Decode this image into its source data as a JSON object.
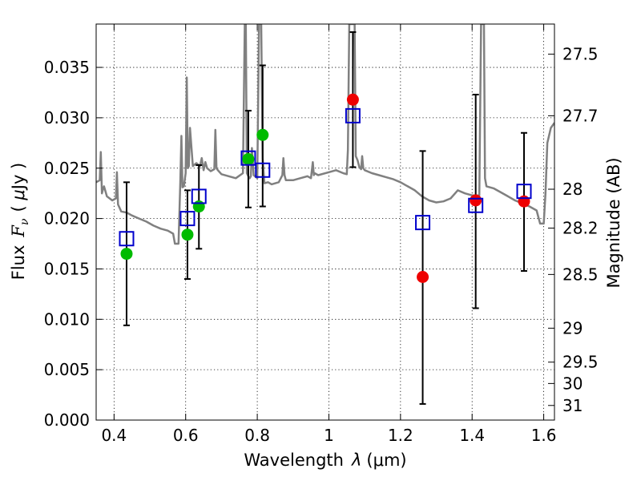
{
  "chart_data": {
    "type": "scatter",
    "title": "",
    "xlabel": "Wavelength  λ (μm)",
    "ylabel": "Flux  F_ν  ( μJy )",
    "ylabel_parts": {
      "text": "Flux",
      "symbol": "F",
      "subscript": "ν",
      "unit_open": "( ",
      "unit_mu": "μ",
      "unit_rest": "Jy )"
    },
    "xlabel_parts": {
      "text": "Wavelength",
      "symbol": "λ",
      "unit": "(μm)"
    },
    "y2label": "Magnitude (AB)",
    "xlim": [
      0.35,
      1.63
    ],
    "ylim": [
      0.0,
      0.0393
    ],
    "grid": true,
    "x_ticks": [
      0.4,
      0.6,
      0.8,
      1.0,
      1.2,
      1.4,
      1.6
    ],
    "x_tick_labels": [
      "0.4",
      "0.6",
      "0.8",
      "1",
      "1.2",
      "1.4",
      "1.6"
    ],
    "y_ticks": [
      0.0,
      0.005,
      0.01,
      0.015,
      0.02,
      0.025,
      0.03,
      0.035
    ],
    "y_tick_labels": [
      "0.000",
      "0.005",
      "0.010",
      "0.015",
      "0.020",
      "0.025",
      "0.030",
      "0.035"
    ],
    "mag_ticks": [
      {
        "label": "27.5",
        "flux": 0.03631
      },
      {
        "label": "27.7",
        "flux": 0.0302
      },
      {
        "label": "28",
        "flux": 0.02291
      },
      {
        "label": "28.2",
        "flux": 0.01905
      },
      {
        "label": "28.5",
        "flux": 0.01445
      },
      {
        "label": "29",
        "flux": 0.00912
      },
      {
        "label": "29.5",
        "flux": 0.00575
      },
      {
        "label": "30",
        "flux": 0.00363
      },
      {
        "label": "31",
        "flux": 0.00145
      }
    ],
    "colors": {
      "model": "#808080",
      "green": "#00bb00",
      "red": "#ee0000",
      "squares": "#0000cc",
      "errorbars": "#000000"
    },
    "series": [
      {
        "marker": "circle",
        "color": "#00bb00",
        "x": [
          0.435,
          0.605,
          0.637,
          0.775,
          0.815
        ],
        "y": [
          0.0165,
          0.0184,
          0.0212,
          0.0259,
          0.0283
        ],
        "err_low": [
          0.0094,
          0.014,
          0.017,
          0.0211,
          0.0212
        ],
        "err_high": [
          0.0236,
          0.0228,
          0.0253,
          0.0307,
          0.0352
        ]
      },
      {
        "marker": "circle",
        "color": "#ee0000",
        "x": [
          1.067,
          1.262,
          1.41,
          1.545
        ],
        "y": [
          0.0318,
          0.0142,
          0.0218,
          0.0217
        ],
        "err_low": [
          0.0251,
          0.0016,
          0.0111,
          0.0148
        ],
        "err_high": [
          0.0385,
          0.0267,
          0.0323,
          0.0285
        ]
      },
      {
        "marker": "open-square",
        "color": "#0000cc",
        "x": [
          0.435,
          0.605,
          0.637,
          0.775,
          0.815,
          1.067,
          1.262,
          1.41,
          1.545
        ],
        "y": [
          0.018,
          0.02,
          0.0222,
          0.026,
          0.0248,
          0.0302,
          0.0196,
          0.0213,
          0.0227
        ]
      }
    ],
    "model_spectrum": {
      "x": [
        0.35,
        0.36,
        0.363,
        0.366,
        0.369,
        0.372,
        0.38,
        0.395,
        0.405,
        0.408,
        0.411,
        0.42,
        0.435,
        0.45,
        0.47,
        0.49,
        0.51,
        0.53,
        0.55,
        0.565,
        0.57,
        0.58,
        0.585,
        0.588,
        0.591,
        0.595,
        0.6,
        0.603,
        0.606,
        0.609,
        0.612,
        0.62,
        0.63,
        0.64,
        0.645,
        0.65,
        0.655,
        0.66,
        0.67,
        0.68,
        0.683,
        0.686,
        0.69,
        0.7,
        0.72,
        0.74,
        0.76,
        0.765,
        0.768,
        0.771,
        0.775,
        0.779,
        0.782,
        0.785,
        0.79,
        0.8,
        0.805,
        0.808,
        0.811,
        0.815,
        0.82,
        0.83,
        0.84,
        0.86,
        0.87,
        0.873,
        0.876,
        0.88,
        0.9,
        0.92,
        0.94,
        0.95,
        0.955,
        0.958,
        0.96,
        0.97,
        1.0,
        1.02,
        1.04,
        1.05,
        1.053,
        1.057,
        1.06,
        1.064,
        1.068,
        1.072,
        1.075,
        1.08,
        1.085,
        1.09,
        1.093,
        1.096,
        1.1,
        1.12,
        1.14,
        1.16,
        1.18,
        1.2,
        1.22,
        1.24,
        1.26,
        1.28,
        1.3,
        1.32,
        1.34,
        1.36,
        1.38,
        1.4,
        1.42,
        1.425,
        1.43,
        1.433,
        1.436,
        1.44,
        1.46,
        1.48,
        1.5,
        1.52,
        1.54,
        1.56,
        1.58,
        1.59,
        1.6,
        1.605,
        1.61,
        1.62,
        1.63
      ],
      "y": [
        0.0236,
        0.0238,
        0.0266,
        0.0225,
        0.0229,
        0.0232,
        0.0222,
        0.0218,
        0.022,
        0.0246,
        0.0214,
        0.0207,
        0.0206,
        0.0203,
        0.02,
        0.0197,
        0.0193,
        0.019,
        0.0188,
        0.0185,
        0.0175,
        0.0175,
        0.0235,
        0.0282,
        0.0231,
        0.0232,
        0.0245,
        0.034,
        0.025,
        0.0252,
        0.029,
        0.0252,
        0.0255,
        0.0252,
        0.026,
        0.0248,
        0.0256,
        0.025,
        0.0247,
        0.0249,
        0.0288,
        0.025,
        0.0248,
        0.0244,
        0.0242,
        0.024,
        0.0245,
        0.0393,
        0.0393,
        0.0245,
        0.0242,
        0.024,
        0.0242,
        0.027,
        0.0243,
        0.024,
        0.0393,
        0.0393,
        0.0393,
        0.026,
        0.0235,
        0.0236,
        0.0234,
        0.0236,
        0.0243,
        0.026,
        0.0243,
        0.0238,
        0.0238,
        0.024,
        0.0242,
        0.024,
        0.0256,
        0.0243,
        0.0245,
        0.0243,
        0.0246,
        0.0248,
        0.0245,
        0.0244,
        0.0268,
        0.0393,
        0.0393,
        0.0393,
        0.0393,
        0.0393,
        0.0262,
        0.0258,
        0.0251,
        0.0249,
        0.0262,
        0.025,
        0.0248,
        0.0245,
        0.0243,
        0.0241,
        0.0239,
        0.0236,
        0.0232,
        0.0228,
        0.0222,
        0.0218,
        0.0216,
        0.0217,
        0.022,
        0.0228,
        0.0225,
        0.0223,
        0.0223,
        0.0393,
        0.0393,
        0.0393,
        0.024,
        0.0232,
        0.023,
        0.0226,
        0.0222,
        0.0218,
        0.0215,
        0.0212,
        0.0208,
        0.0195,
        0.0195,
        0.0225,
        0.0275,
        0.029,
        0.0295
      ]
    }
  }
}
